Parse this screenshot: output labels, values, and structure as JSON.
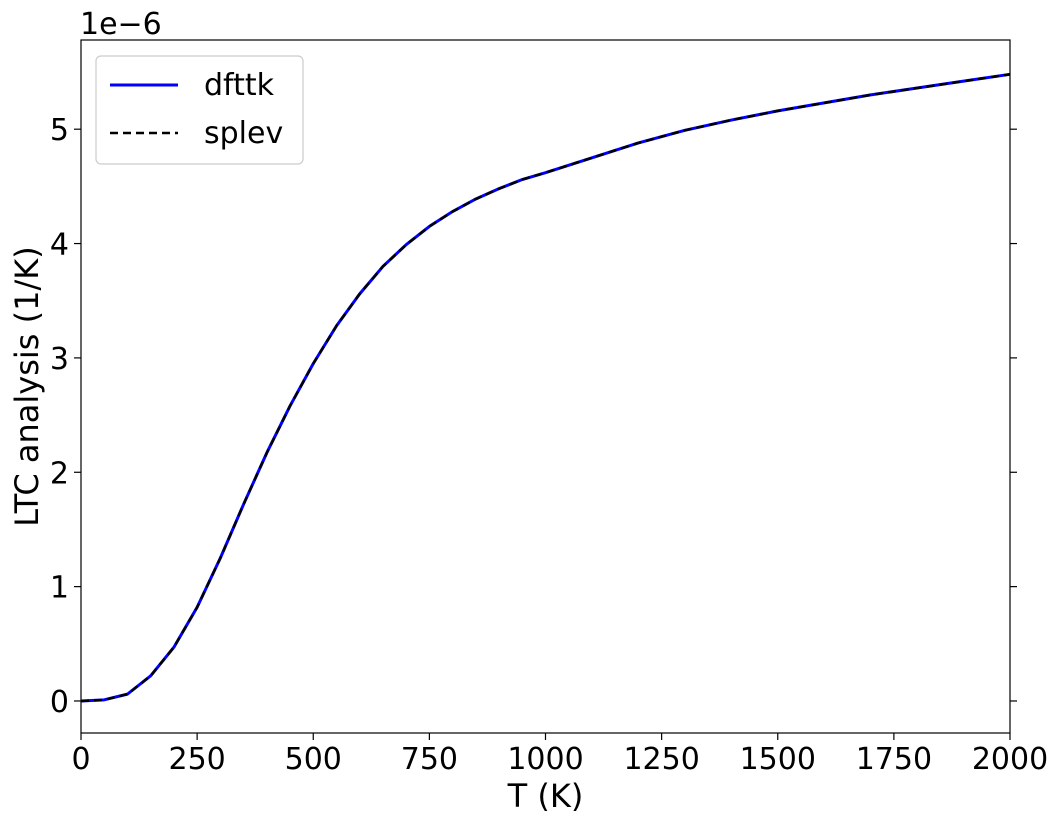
{
  "chart_data": {
    "type": "line",
    "xlabel": "T (K)",
    "ylabel": "LTC analysis (1/K)",
    "offset_text": "1e−6",
    "xlim": [
      0,
      2000
    ],
    "ylim": [
      -0.28,
      5.78
    ],
    "x_ticks": [
      0,
      250,
      500,
      750,
      1000,
      1250,
      1500,
      1750,
      2000
    ],
    "x_tick_labels": [
      "0",
      "250",
      "500",
      "750",
      "1000",
      "1250",
      "1500",
      "1750",
      "2000"
    ],
    "y_ticks": [
      0,
      1,
      2,
      3,
      4,
      5
    ],
    "y_tick_labels": [
      "0",
      "1",
      "2",
      "3",
      "4",
      "5"
    ],
    "y_scale_factor": 1e-06,
    "grid": false,
    "legend_position": "top-left",
    "series": [
      {
        "name": "dfttk",
        "color": "#0000ff",
        "style": "solid",
        "x": [
          0,
          50,
          100,
          150,
          200,
          250,
          300,
          350,
          400,
          450,
          500,
          550,
          600,
          650,
          700,
          750,
          800,
          850,
          900,
          950,
          1000,
          1100,
          1200,
          1300,
          1400,
          1500,
          1600,
          1700,
          1800,
          1900,
          2000
        ],
        "y": [
          0,
          0.01,
          0.06,
          0.22,
          0.47,
          0.82,
          1.25,
          1.72,
          2.17,
          2.58,
          2.95,
          3.28,
          3.56,
          3.8,
          3.99,
          4.15,
          4.28,
          4.39,
          4.48,
          4.56,
          4.62,
          4.75,
          4.88,
          4.99,
          5.08,
          5.16,
          5.23,
          5.3,
          5.36,
          5.42,
          5.48
        ]
      },
      {
        "name": "splev",
        "color": "#000000",
        "style": "dashed",
        "x": [
          0,
          50,
          100,
          150,
          200,
          250,
          300,
          350,
          400,
          450,
          500,
          550,
          600,
          650,
          700,
          750,
          800,
          850,
          900,
          950,
          1000,
          1100,
          1200,
          1300,
          1400,
          1500,
          1600,
          1700,
          1800,
          1900,
          2000
        ],
        "y": [
          0,
          0.01,
          0.06,
          0.22,
          0.47,
          0.82,
          1.25,
          1.72,
          2.17,
          2.58,
          2.95,
          3.28,
          3.56,
          3.8,
          3.99,
          4.15,
          4.28,
          4.39,
          4.48,
          4.56,
          4.62,
          4.75,
          4.88,
          4.99,
          5.08,
          5.16,
          5.23,
          5.3,
          5.36,
          5.42,
          5.48
        ]
      }
    ]
  }
}
